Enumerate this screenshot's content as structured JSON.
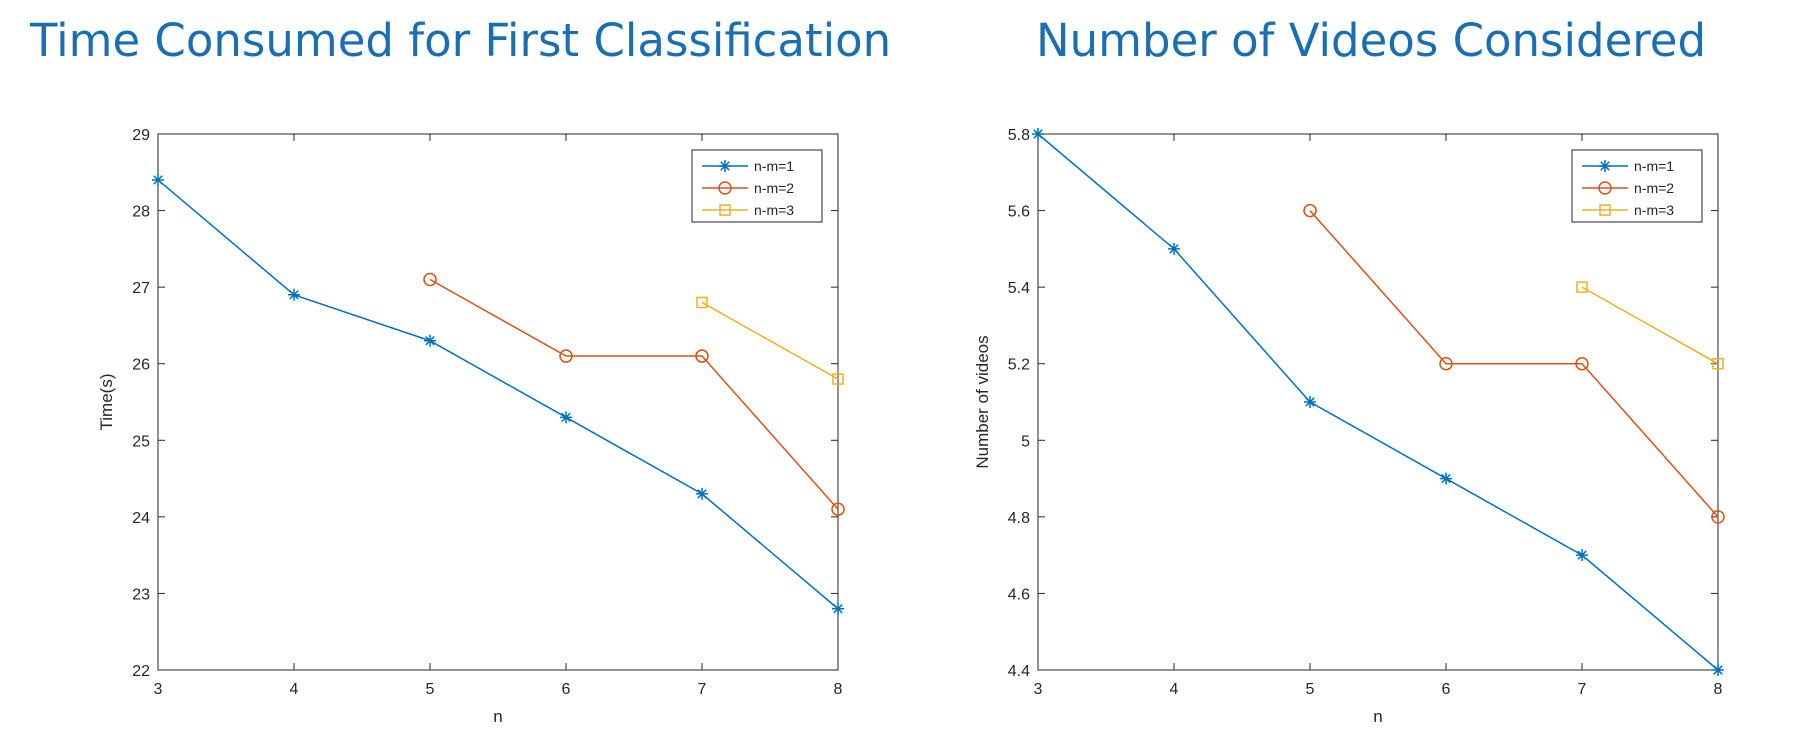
{
  "chart_data": [
    {
      "type": "line",
      "title": "Time Consumed for First Classification",
      "xlabel": "n",
      "ylabel": "Time(s)",
      "xlim": [
        3,
        8
      ],
      "ylim": [
        22,
        29
      ],
      "x_ticks": [
        "3",
        "4",
        "5",
        "6",
        "7",
        "8"
      ],
      "y_ticks": [
        "22",
        "23",
        "24",
        "25",
        "26",
        "27",
        "28",
        "29"
      ],
      "grid": false,
      "legend_position": "top-right",
      "series": [
        {
          "name": "n-m=1",
          "marker": "asterisk",
          "color": "#0072BD",
          "x": [
            3,
            4,
            5,
            6,
            7,
            8
          ],
          "y": [
            28.4,
            26.9,
            26.3,
            25.3,
            24.3,
            22.8
          ]
        },
        {
          "name": "n-m=2",
          "marker": "circle",
          "color": "#D95319",
          "x": [
            5,
            6,
            7,
            8
          ],
          "y": [
            27.1,
            26.1,
            26.1,
            24.1
          ]
        },
        {
          "name": "n-m=3",
          "marker": "square",
          "color": "#EDB120",
          "x": [
            7,
            8
          ],
          "y": [
            26.8,
            25.8
          ]
        }
      ]
    },
    {
      "type": "line",
      "title": "Number of Videos Considered",
      "xlabel": "n",
      "ylabel": "Number of videos",
      "xlim": [
        3,
        8
      ],
      "ylim": [
        4.4,
        5.8
      ],
      "x_ticks": [
        "3",
        "4",
        "5",
        "6",
        "7",
        "8"
      ],
      "y_ticks": [
        "4.4",
        "4.6",
        "4.8",
        "5",
        "5.2",
        "5.4",
        "5.6",
        "5.8"
      ],
      "grid": false,
      "legend_position": "top-right",
      "series": [
        {
          "name": "n-m=1",
          "marker": "asterisk",
          "color": "#0072BD",
          "x": [
            3,
            4,
            5,
            6,
            7,
            8
          ],
          "y": [
            5.8,
            5.5,
            5.1,
            4.9,
            4.7,
            4.4
          ]
        },
        {
          "name": "n-m=2",
          "marker": "circle",
          "color": "#D95319",
          "x": [
            5,
            6,
            7,
            8
          ],
          "y": [
            5.6,
            5.2,
            5.2,
            4.8
          ]
        },
        {
          "name": "n-m=3",
          "marker": "square",
          "color": "#EDB120",
          "x": [
            7,
            8
          ],
          "y": [
            5.4,
            5.2
          ]
        }
      ]
    }
  ]
}
